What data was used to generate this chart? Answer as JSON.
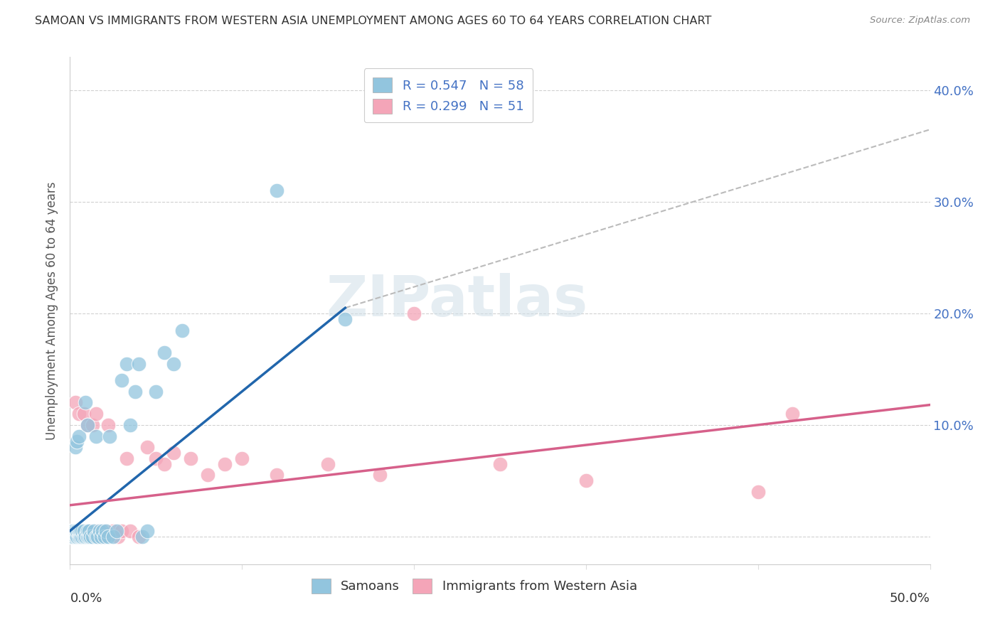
{
  "title": "SAMOAN VS IMMIGRANTS FROM WESTERN ASIA UNEMPLOYMENT AMONG AGES 60 TO 64 YEARS CORRELATION CHART",
  "source": "Source: ZipAtlas.com",
  "ylabel": "Unemployment Among Ages 60 to 64 years",
  "ytick_labels": [
    "",
    "10.0%",
    "20.0%",
    "30.0%",
    "40.0%"
  ],
  "ytick_values": [
    0.0,
    0.1,
    0.2,
    0.3,
    0.4
  ],
  "xlim": [
    0.0,
    0.5
  ],
  "ylim": [
    -0.025,
    0.43
  ],
  "watermark": "ZIPatlas",
  "samoans_color": "#92c5de",
  "immigrants_color": "#f4a5b8",
  "samoans_line_color": "#2166ac",
  "immigrants_line_color": "#d6608a",
  "dashed_line_color": "#bbbbbb",
  "background_color": "#ffffff",
  "grid_color": "#cccccc",
  "blue_line_x0": 0.0,
  "blue_line_y0": 0.005,
  "blue_line_x1": 0.16,
  "blue_line_y1": 0.205,
  "pink_line_x0": 0.0,
  "pink_line_y0": 0.028,
  "pink_line_x1": 0.5,
  "pink_line_y1": 0.118,
  "dash_line_x0": 0.16,
  "dash_line_y0": 0.205,
  "dash_line_x1": 0.5,
  "dash_line_y1": 0.365,
  "samoans_x": [
    0.0,
    0.001,
    0.001,
    0.002,
    0.002,
    0.002,
    0.003,
    0.003,
    0.003,
    0.003,
    0.004,
    0.004,
    0.004,
    0.005,
    0.005,
    0.005,
    0.005,
    0.006,
    0.006,
    0.007,
    0.007,
    0.008,
    0.008,
    0.009,
    0.009,
    0.01,
    0.01,
    0.01,
    0.011,
    0.011,
    0.012,
    0.013,
    0.014,
    0.015,
    0.015,
    0.016,
    0.017,
    0.018,
    0.019,
    0.02,
    0.021,
    0.022,
    0.023,
    0.025,
    0.027,
    0.03,
    0.033,
    0.035,
    0.038,
    0.04,
    0.042,
    0.045,
    0.05,
    0.055,
    0.06,
    0.065,
    0.12,
    0.16
  ],
  "samoans_y": [
    0.0,
    0.0,
    0.005,
    0.0,
    0.002,
    0.005,
    0.0,
    0.002,
    0.005,
    0.08,
    0.0,
    0.005,
    0.085,
    0.0,
    0.003,
    0.005,
    0.09,
    0.0,
    0.005,
    0.0,
    0.005,
    0.0,
    0.005,
    0.0,
    0.12,
    0.0,
    0.005,
    0.1,
    0.0,
    0.005,
    0.0,
    0.0,
    0.005,
    0.0,
    0.09,
    0.0,
    0.005,
    0.0,
    0.005,
    0.0,
    0.005,
    0.0,
    0.09,
    0.0,
    0.005,
    0.14,
    0.155,
    0.1,
    0.13,
    0.155,
    0.0,
    0.005,
    0.13,
    0.165,
    0.155,
    0.185,
    0.31,
    0.195
  ],
  "immigrants_x": [
    0.0,
    0.0,
    0.001,
    0.001,
    0.002,
    0.002,
    0.003,
    0.003,
    0.004,
    0.004,
    0.005,
    0.005,
    0.005,
    0.006,
    0.007,
    0.008,
    0.008,
    0.009,
    0.01,
    0.01,
    0.011,
    0.012,
    0.013,
    0.015,
    0.015,
    0.016,
    0.018,
    0.02,
    0.022,
    0.025,
    0.028,
    0.03,
    0.033,
    0.035,
    0.04,
    0.045,
    0.05,
    0.055,
    0.06,
    0.07,
    0.08,
    0.09,
    0.1,
    0.12,
    0.15,
    0.18,
    0.2,
    0.25,
    0.3,
    0.4,
    0.42
  ],
  "immigrants_y": [
    0.0,
    0.005,
    0.0,
    0.005,
    0.0,
    0.005,
    0.0,
    0.12,
    0.0,
    0.005,
    0.0,
    0.005,
    0.11,
    0.005,
    0.0,
    0.005,
    0.11,
    0.0,
    0.005,
    0.1,
    0.005,
    0.0,
    0.1,
    0.0,
    0.11,
    0.005,
    0.0,
    0.005,
    0.1,
    0.005,
    0.0,
    0.005,
    0.07,
    0.005,
    0.0,
    0.08,
    0.07,
    0.065,
    0.075,
    0.07,
    0.055,
    0.065,
    0.07,
    0.055,
    0.065,
    0.055,
    0.2,
    0.065,
    0.05,
    0.04,
    0.11
  ]
}
